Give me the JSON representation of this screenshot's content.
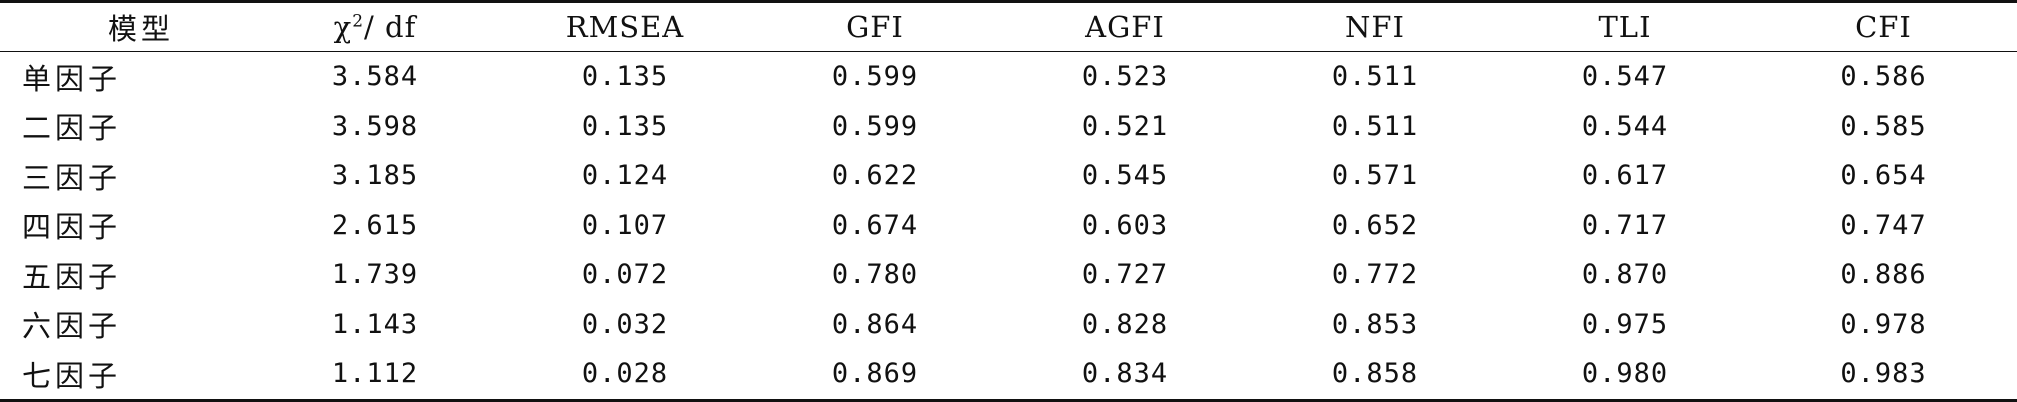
{
  "table": {
    "headers": {
      "model": "模型",
      "chi_symbol": "χ",
      "chi_sup": "2",
      "chi_tail": "/ df",
      "rmsea": "RMSEA",
      "gfi": "GFI",
      "agfi": "AGFI",
      "nfi": "NFI",
      "tli": "TLI",
      "cfi": "CFI"
    },
    "rows": [
      {
        "model": "单因子",
        "chi_df": "3.584",
        "rmsea": "0.135",
        "gfi": "0.599",
        "agfi": "0.523",
        "nfi": "0.511",
        "tli": "0.547",
        "cfi": "0.586"
      },
      {
        "model": "二因子",
        "chi_df": "3.598",
        "rmsea": "0.135",
        "gfi": "0.599",
        "agfi": "0.521",
        "nfi": "0.511",
        "tli": "0.544",
        "cfi": "0.585"
      },
      {
        "model": "三因子",
        "chi_df": "3.185",
        "rmsea": "0.124",
        "gfi": "0.622",
        "agfi": "0.545",
        "nfi": "0.571",
        "tli": "0.617",
        "cfi": "0.654"
      },
      {
        "model": "四因子",
        "chi_df": "2.615",
        "rmsea": "0.107",
        "gfi": "0.674",
        "agfi": "0.603",
        "nfi": "0.652",
        "tli": "0.717",
        "cfi": "0.747"
      },
      {
        "model": "五因子",
        "chi_df": "1.739",
        "rmsea": "0.072",
        "gfi": "0.780",
        "agfi": "0.727",
        "nfi": "0.772",
        "tli": "0.870",
        "cfi": "0.886"
      },
      {
        "model": "六因子",
        "chi_df": "1.143",
        "rmsea": "0.032",
        "gfi": "0.864",
        "agfi": "0.828",
        "nfi": "0.853",
        "tli": "0.975",
        "cfi": "0.978"
      },
      {
        "model": "七因子",
        "chi_df": "1.112",
        "rmsea": "0.028",
        "gfi": "0.869",
        "agfi": "0.834",
        "nfi": "0.858",
        "tli": "0.980",
        "cfi": "0.983"
      }
    ]
  }
}
